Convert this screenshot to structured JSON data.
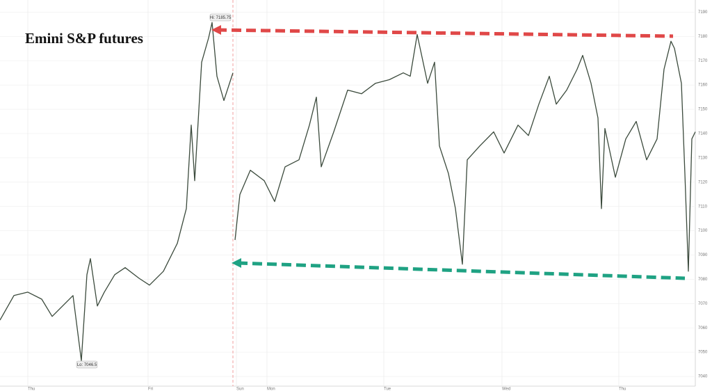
{
  "chart_data": {
    "type": "line",
    "title": "Emini S&P futures",
    "x": [
      0,
      20,
      40,
      60,
      75,
      90,
      105,
      117,
      125,
      130,
      140,
      150,
      165,
      180,
      200,
      215,
      235,
      255,
      268,
      275,
      280,
      290,
      300,
      305,
      312,
      322,
      335,
      336,
      338,
      345,
      360,
      380,
      395,
      410,
      430,
      445,
      455,
      462,
      480,
      500,
      520,
      540,
      560,
      580,
      590,
      600,
      615,
      625,
      632,
      645,
      655,
      665,
      672,
      690,
      710,
      725,
      745,
      760,
      775,
      790,
      800,
      815,
      830,
      838,
      850,
      860,
      865,
      870,
      885,
      900,
      915,
      930,
      945,
      955,
      965,
      970,
      980,
      985,
      990,
      995,
      1000
    ],
    "values": [
      7063.2,
      7073.3,
      7074.7,
      7071.8,
      7064.7,
      7069,
      7073.3,
      7046.5,
      7081.9,
      7088.5,
      7069,
      7074.7,
      7081.9,
      7084.8,
      7080.4,
      7077.6,
      7083.3,
      7094.8,
      7109.1,
      7143.5,
      7120.6,
      7169.4,
      7179.4,
      7185.75,
      7163.6,
      7153.6,
      7165,
      null,
      7096.2,
      7114.9,
      7124.9,
      7120.6,
      7112,
      7126.3,
      7129.2,
      7143.5,
      7155,
      7126.3,
      7140.7,
      7157.9,
      7156.4,
      7160.7,
      7162.2,
      7165,
      7163.6,
      7180.8,
      7160.7,
      7169.4,
      7134.9,
      7123.5,
      7109.1,
      7086.2,
      7129.2,
      7134.9,
      7140.7,
      7132,
      7143.5,
      7139.2,
      7152.1,
      7163.6,
      7152.1,
      7157.9,
      7166.5,
      7172.2,
      7160.7,
      7146.4,
      7109.1,
      7142.1,
      7122,
      7137.8,
      7145,
      7129.2,
      7137.8,
      7166.5,
      7178,
      7175.1,
      7160.7,
      7123.5,
      7083.3,
      7137.8,
      7140.7
    ],
    "color": "#3b4a3c",
    "xlim": [
      0,
      1000
    ],
    "xticks": [
      {
        "value": 40,
        "label": "Thu"
      },
      {
        "value": 213,
        "label": "Fri"
      },
      {
        "value": 340,
        "label": "Sun"
      },
      {
        "value": 384,
        "label": "Mon"
      },
      {
        "value": 552,
        "label": "Tue"
      },
      {
        "value": 722,
        "label": "Wed"
      },
      {
        "value": 890,
        "label": "Thu"
      }
    ],
    "ylim": [
      7036,
      7195
    ],
    "yticks": [
      7040,
      7050,
      7060,
      7070,
      7080,
      7090,
      7100,
      7110,
      7120,
      7130,
      7140,
      7150,
      7160,
      7170,
      7180,
      7190
    ],
    "grid": true,
    "annotations": [
      "Hi: 7185.75",
      "Lo: 7046.5"
    ]
  }
}
